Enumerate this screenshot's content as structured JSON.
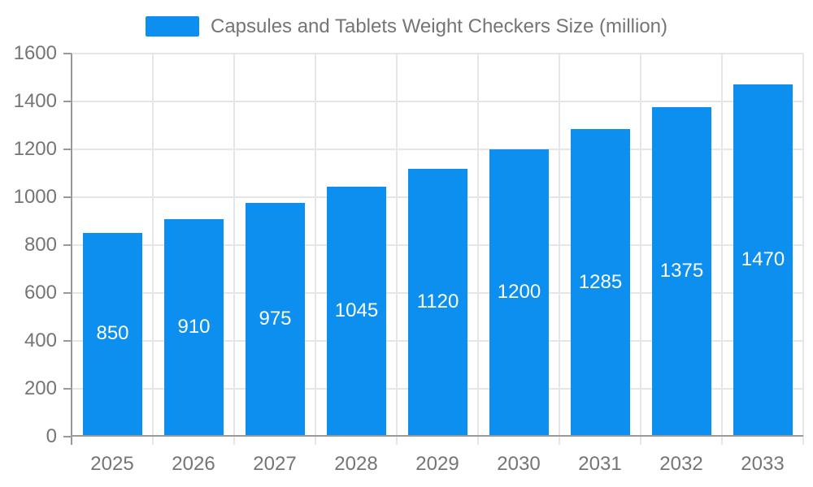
{
  "chart_data": {
    "type": "bar",
    "title": "Capsules and Tablets Weight Checkers Size (million)",
    "legend": [
      "Capsules and Tablets Weight Checkers Size (million)"
    ],
    "legend_position": "top-center",
    "categories": [
      "2025",
      "2026",
      "2027",
      "2028",
      "2029",
      "2030",
      "2031",
      "2032",
      "2033"
    ],
    "values": [
      850,
      910,
      975,
      1045,
      1120,
      1200,
      1285,
      1375,
      1470
    ],
    "value_labels_shown_inside_bars": true,
    "xlabel": "",
    "ylabel": "",
    "ylim": [
      0,
      1600
    ],
    "yticks": [
      0,
      200,
      400,
      600,
      800,
      1000,
      1200,
      1400,
      1600
    ],
    "grid": true,
    "colors": {
      "bar": "#0D8FF0",
      "grid": "#e6e6e6",
      "axis": "#999999",
      "text": "#757575",
      "value_label": "#ffffff"
    }
  }
}
